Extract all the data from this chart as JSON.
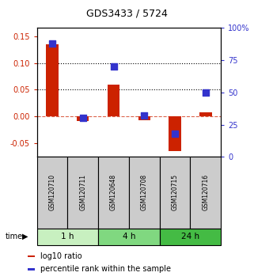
{
  "title": "GDS3433 / 5724",
  "samples": [
    "GSM120710",
    "GSM120711",
    "GSM120648",
    "GSM120708",
    "GSM120715",
    "GSM120716"
  ],
  "log10_ratio": [
    0.135,
    -0.008,
    0.06,
    -0.007,
    -0.065,
    0.008
  ],
  "percentile_rank": [
    88,
    30,
    70,
    32,
    18,
    50
  ],
  "groups": [
    {
      "label": "1 h",
      "indices": [
        0,
        1
      ],
      "color": "#c8f0c0"
    },
    {
      "label": "4 h",
      "indices": [
        2,
        3
      ],
      "color": "#80d880"
    },
    {
      "label": "24 h",
      "indices": [
        4,
        5
      ],
      "color": "#44bb44"
    }
  ],
  "ylim_left": [
    -0.075,
    0.165
  ],
  "ylim_right": [
    0,
    100
  ],
  "yticks_left": [
    -0.05,
    0.0,
    0.05,
    0.1,
    0.15
  ],
  "yticks_right": [
    0,
    25,
    50,
    75,
    100
  ],
  "hlines": [
    0.05,
    0.1
  ],
  "bar_color": "#cc2200",
  "dot_color": "#3333cc",
  "bar_width": 0.4,
  "dot_size": 40,
  "left_tick_color": "#cc2200",
  "right_tick_color": "#3333cc",
  "background_color": "#ffffff",
  "sample_box_color": "#cccccc",
  "time_label": "time"
}
